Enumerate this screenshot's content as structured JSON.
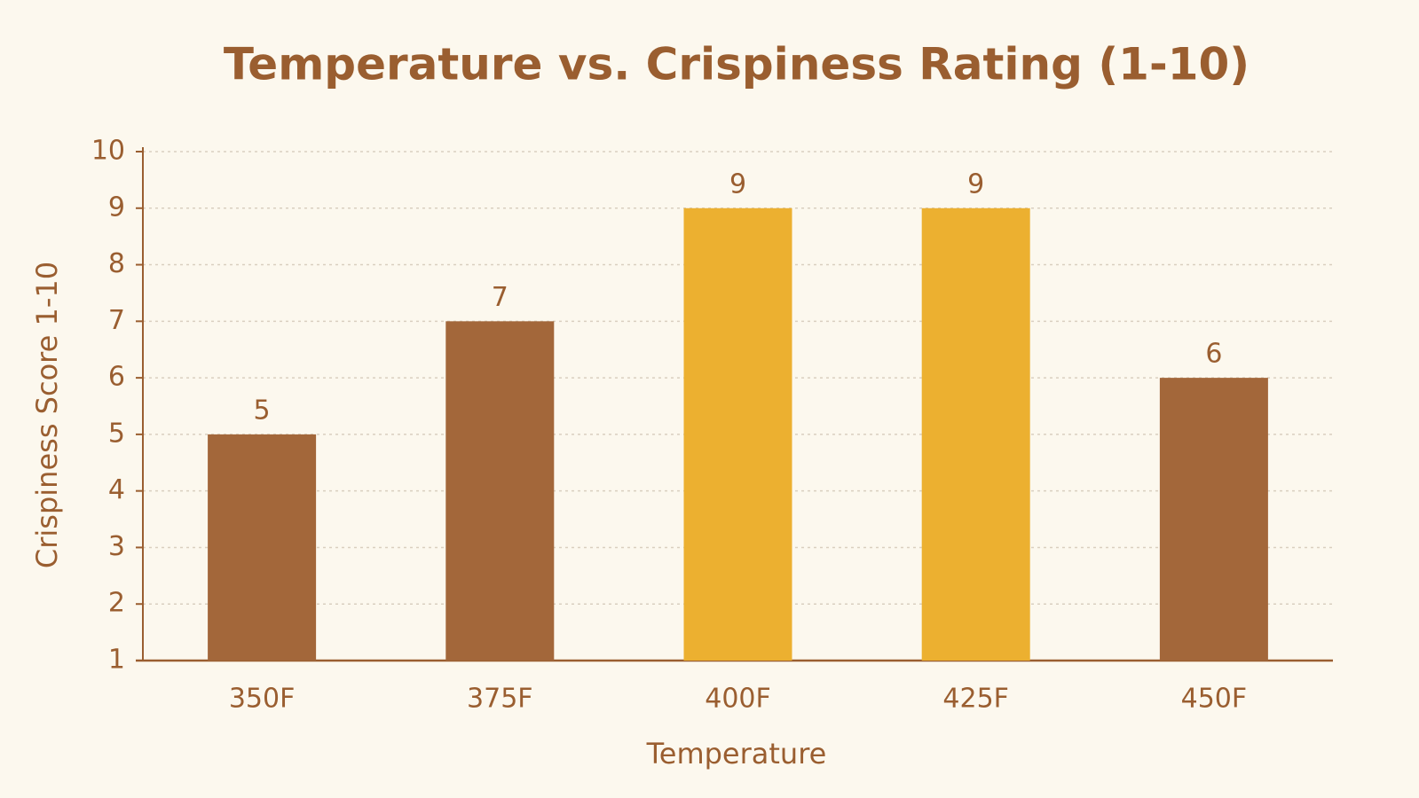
{
  "chart_data": {
    "type": "bar",
    "title": "Temperature vs. Crispiness Rating (1-10)",
    "x_label": "Temperature",
    "y_label": "Crispiness Score 1-10",
    "categories": [
      "350F",
      "375F",
      "400F",
      "425F",
      "450F"
    ],
    "values": [
      5,
      7,
      9,
      9,
      6
    ],
    "colors": [
      "#a3673a",
      "#a3673a",
      "#ecb030",
      "#ecb030",
      "#a3673a"
    ],
    "ylim": [
      1,
      10
    ],
    "yticks": [
      1,
      2,
      3,
      4,
      5,
      6,
      7,
      8,
      9,
      10
    ],
    "grid": true
  }
}
